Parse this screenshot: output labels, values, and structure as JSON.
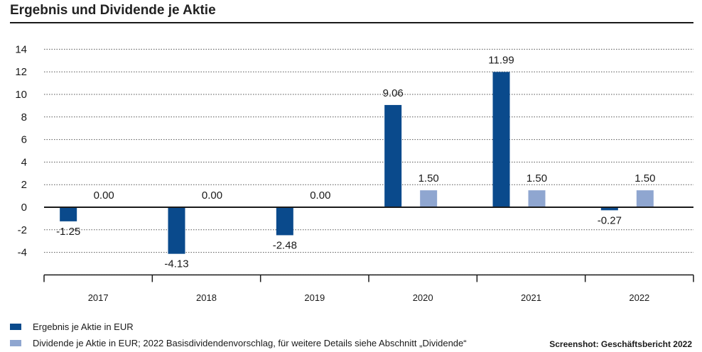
{
  "chart_data": {
    "type": "bar",
    "title": "Ergebnis und Dividende je Aktie",
    "categories": [
      "2017",
      "2018",
      "2019",
      "2020",
      "2021",
      "2022"
    ],
    "series": [
      {
        "name": "Ergebnis je Aktie in EUR",
        "color": "#0a4a8c",
        "values": [
          -1.25,
          -4.13,
          -2.48,
          9.06,
          11.99,
          -0.27
        ],
        "labels": [
          "-1.25",
          "-4.13",
          "-2.48",
          "9.06",
          "11.99",
          "-0.27"
        ]
      },
      {
        "name": "Dividende je Aktie in EUR; 2022 Basisdividendenvorschlag, für weitere Details siehe Abschnitt „Dividende“",
        "color": "#8fa6d0",
        "values": [
          0.0,
          0.0,
          0.0,
          1.5,
          1.5,
          1.5
        ],
        "labels": [
          "0.00",
          "0.00",
          "0.00",
          "1.50",
          "1.50",
          "1.50"
        ]
      }
    ],
    "yticks": [
      "14",
      "12",
      "10",
      "8",
      "6",
      "4",
      "2",
      "0",
      "-2",
      "-4"
    ],
    "ylim": [
      -6,
      14
    ],
    "grid": true,
    "legend_position": "bottom-left"
  },
  "source_note": "Screenshot: Geschäftsbericht 2022"
}
